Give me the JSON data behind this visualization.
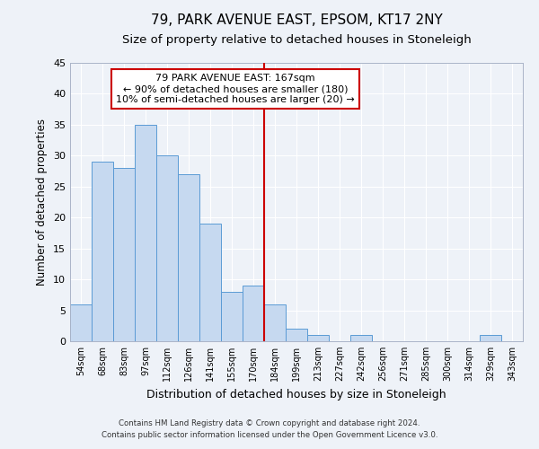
{
  "title": "79, PARK AVENUE EAST, EPSOM, KT17 2NY",
  "subtitle": "Size of property relative to detached houses in Stoneleigh",
  "xlabel": "Distribution of detached houses by size in Stoneleigh",
  "ylabel": "Number of detached properties",
  "bin_labels": [
    "54sqm",
    "68sqm",
    "83sqm",
    "97sqm",
    "112sqm",
    "126sqm",
    "141sqm",
    "155sqm",
    "170sqm",
    "184sqm",
    "199sqm",
    "213sqm",
    "227sqm",
    "242sqm",
    "256sqm",
    "271sqm",
    "285sqm",
    "300sqm",
    "314sqm",
    "329sqm",
    "343sqm"
  ],
  "bar_values": [
    6,
    29,
    28,
    35,
    30,
    27,
    19,
    8,
    9,
    6,
    2,
    1,
    0,
    1,
    0,
    0,
    0,
    0,
    0,
    1,
    0
  ],
  "bar_color": "#c6d9f0",
  "bar_edge_color": "#5b9bd5",
  "ylim": [
    0,
    45
  ],
  "yticks": [
    0,
    5,
    10,
    15,
    20,
    25,
    30,
    35,
    40,
    45
  ],
  "vline_x": 8.5,
  "vline_color": "#cc0000",
  "annotation_title": "79 PARK AVENUE EAST: 167sqm",
  "annotation_line1": "← 90% of detached houses are smaller (180)",
  "annotation_line2": "10% of semi-detached houses are larger (20) →",
  "annotation_box_color": "#cc0000",
  "footer_line1": "Contains HM Land Registry data © Crown copyright and database right 2024.",
  "footer_line2": "Contains public sector information licensed under the Open Government Licence v3.0.",
  "background_color": "#eef2f8",
  "grid_color": "#ffffff",
  "title_fontsize": 11,
  "subtitle_fontsize": 9.5,
  "xlabel_fontsize": 9,
  "ylabel_fontsize": 8.5
}
